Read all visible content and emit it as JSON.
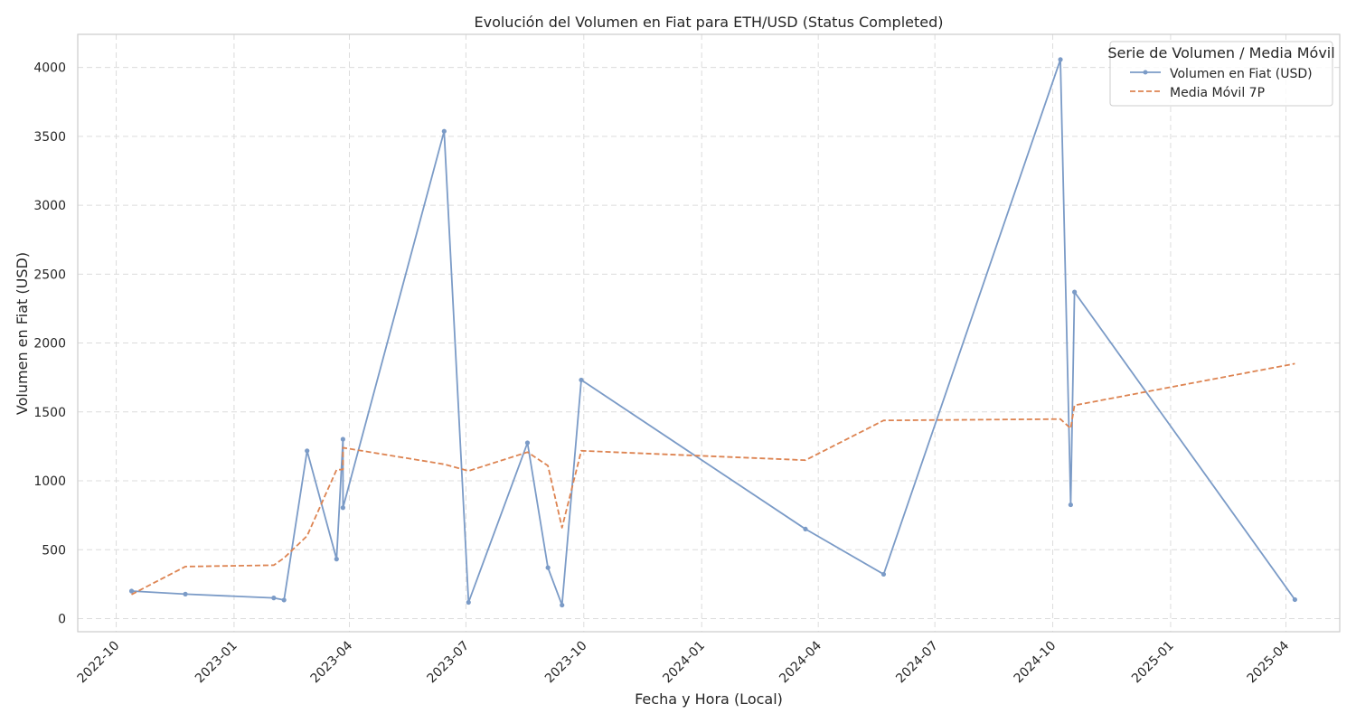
{
  "chart_data": {
    "type": "line",
    "title": "Evolución del Volumen en Fiat para ETH/USD (Status Completed)",
    "xlabel": "Fecha y Hora (Local)",
    "ylabel": "Volumen en Fiat (USD)",
    "x_range": [
      "2022-09-01",
      "2025-05-13"
    ],
    "ylim": [
      -95,
      4240
    ],
    "x_ticks": [
      "2022-10",
      "2023-01",
      "2023-04",
      "2023-07",
      "2023-10",
      "2024-01",
      "2024-04",
      "2024-07",
      "2024-10",
      "2025-01",
      "2025-04"
    ],
    "y_ticks": [
      0,
      500,
      1000,
      1500,
      2000,
      2500,
      3000,
      3500,
      4000
    ],
    "grid": true,
    "legend": {
      "title": "Serie de Volumen / Media Móvil",
      "position": "top-right"
    },
    "series": [
      {
        "name": "Volumen en Fiat (USD)",
        "style": "solid-markers",
        "color": "#7b9bc7",
        "points": [
          {
            "x": "2022-10-13",
            "y": 200
          },
          {
            "x": "2022-11-24",
            "y": 178
          },
          {
            "x": "2023-02-01",
            "y": 150
          },
          {
            "x": "2023-02-09",
            "y": 135
          },
          {
            "x": "2023-02-27",
            "y": 1218
          },
          {
            "x": "2023-03-22",
            "y": 432
          },
          {
            "x": "2023-03-27",
            "y": 1302
          },
          {
            "x": "2023-03-27",
            "y": 805
          },
          {
            "x": "2023-06-14",
            "y": 3537
          },
          {
            "x": "2023-07-03",
            "y": 118
          },
          {
            "x": "2023-08-18",
            "y": 1276
          },
          {
            "x": "2023-09-03",
            "y": 370
          },
          {
            "x": "2023-09-14",
            "y": 98
          },
          {
            "x": "2023-09-29",
            "y": 1732
          },
          {
            "x": "2024-03-22",
            "y": 650
          },
          {
            "x": "2024-05-22",
            "y": 322
          },
          {
            "x": "2024-10-07",
            "y": 4057
          },
          {
            "x": "2024-10-15",
            "y": 826
          },
          {
            "x": "2024-10-18",
            "y": 2370
          },
          {
            "x": "2025-04-08",
            "y": 138
          }
        ]
      },
      {
        "name": "Media Móvil 7P",
        "style": "dashed",
        "color": "#dd8452",
        "points": [
          {
            "x": "2022-10-13",
            "y": 175
          },
          {
            "x": "2022-11-24",
            "y": 378
          },
          {
            "x": "2023-02-01",
            "y": 388
          },
          {
            "x": "2023-02-09",
            "y": 440
          },
          {
            "x": "2023-02-27",
            "y": 600
          },
          {
            "x": "2023-03-22",
            "y": 1080
          },
          {
            "x": "2023-03-27",
            "y": 1082
          },
          {
            "x": "2023-03-27",
            "y": 1240
          },
          {
            "x": "2023-06-14",
            "y": 1120
          },
          {
            "x": "2023-07-03",
            "y": 1072
          },
          {
            "x": "2023-08-18",
            "y": 1208
          },
          {
            "x": "2023-09-03",
            "y": 1110
          },
          {
            "x": "2023-09-14",
            "y": 660
          },
          {
            "x": "2023-09-29",
            "y": 1218
          },
          {
            "x": "2024-03-22",
            "y": 1150
          },
          {
            "x": "2024-05-22",
            "y": 1438
          },
          {
            "x": "2024-10-07",
            "y": 1448
          },
          {
            "x": "2024-10-15",
            "y": 1380
          },
          {
            "x": "2024-10-18",
            "y": 1548
          },
          {
            "x": "2025-04-08",
            "y": 1850
          }
        ]
      }
    ]
  }
}
